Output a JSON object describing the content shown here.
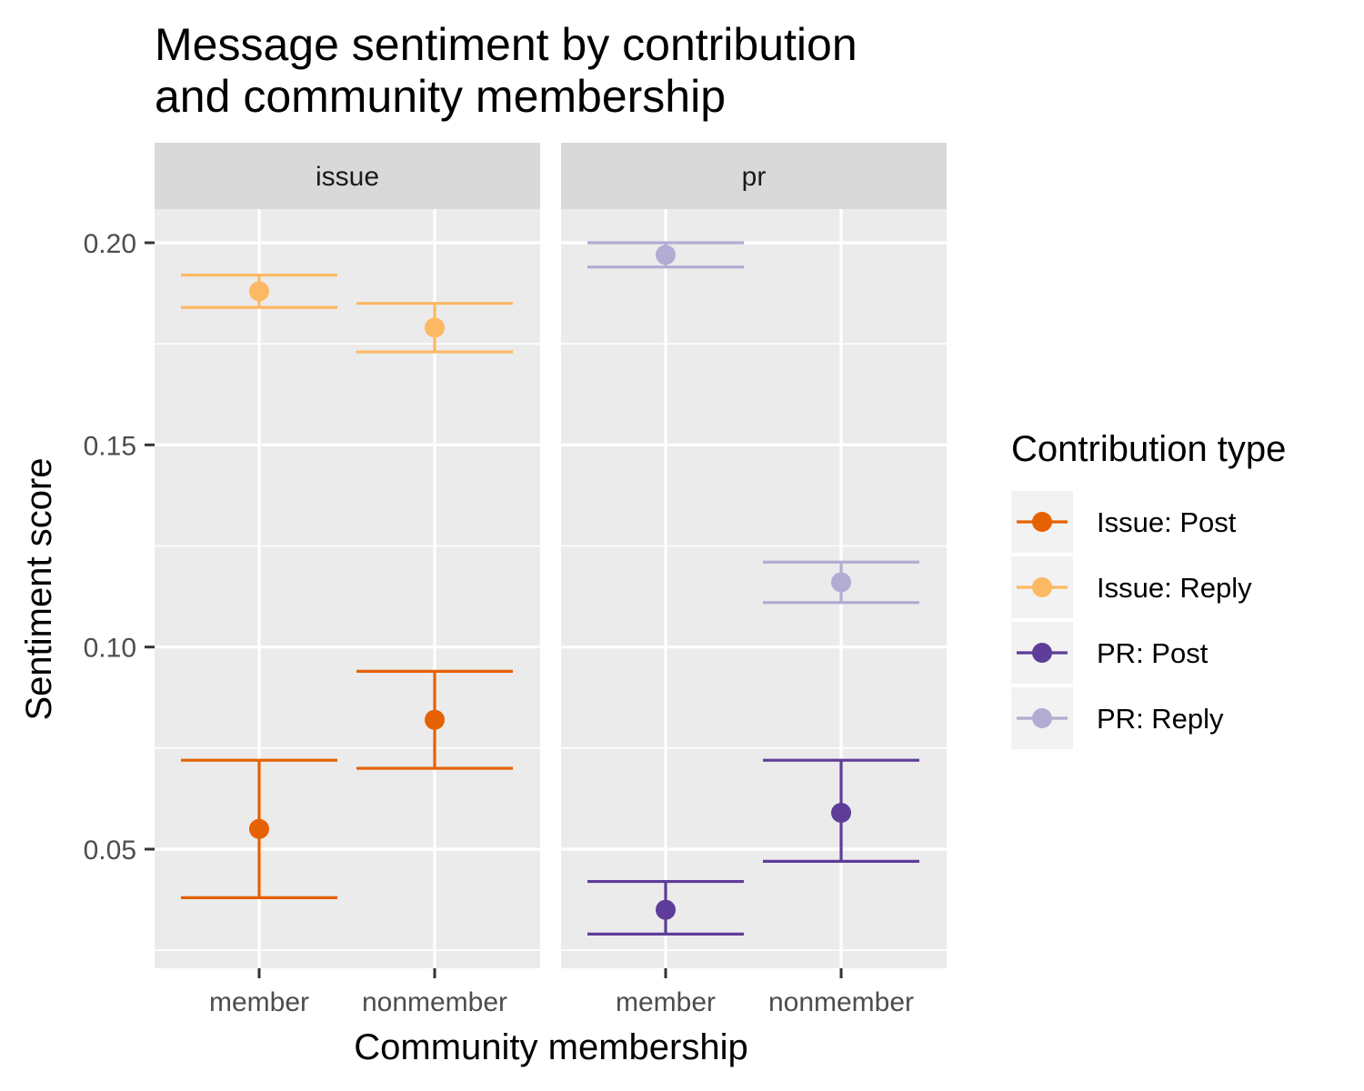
{
  "chart_data": {
    "type": "scatter",
    "title_lines": [
      "Message sentiment by contribution",
      "and community membership"
    ],
    "xlabel": "Community membership",
    "ylabel": "Sentiment score",
    "panels": [
      "issue",
      "pr"
    ],
    "categories": [
      "member",
      "nonmember"
    ],
    "y_ticks": [
      0.05,
      0.1,
      0.15,
      0.2
    ],
    "y_tick_labels": [
      "0.05",
      "0.10",
      "0.15",
      "0.20"
    ],
    "ylim": [
      0.02,
      0.21
    ],
    "grid": true,
    "legend": {
      "title": "Contribution type",
      "position": "right"
    },
    "series": [
      {
        "name": "Issue: Post",
        "color": "#e66101",
        "panel": "issue",
        "points": [
          {
            "category": "member",
            "mean": 0.055,
            "lower": 0.038,
            "upper": 0.072
          },
          {
            "category": "nonmember",
            "mean": 0.082,
            "lower": 0.07,
            "upper": 0.094
          }
        ]
      },
      {
        "name": "Issue: Reply",
        "color": "#fdb863",
        "panel": "issue",
        "points": [
          {
            "category": "member",
            "mean": 0.188,
            "lower": 0.184,
            "upper": 0.192
          },
          {
            "category": "nonmember",
            "mean": 0.179,
            "lower": 0.173,
            "upper": 0.185
          }
        ]
      },
      {
        "name": "PR: Post",
        "color": "#5e3c99",
        "panel": "pr",
        "points": [
          {
            "category": "member",
            "mean": 0.035,
            "lower": 0.029,
            "upper": 0.042
          },
          {
            "category": "nonmember",
            "mean": 0.059,
            "lower": 0.047,
            "upper": 0.072
          }
        ]
      },
      {
        "name": "PR: Reply",
        "color": "#b2abd2",
        "panel": "pr",
        "points": [
          {
            "category": "member",
            "mean": 0.197,
            "lower": 0.194,
            "upper": 0.2
          },
          {
            "category": "nonmember",
            "mean": 0.116,
            "lower": 0.111,
            "upper": 0.121
          }
        ]
      }
    ]
  }
}
